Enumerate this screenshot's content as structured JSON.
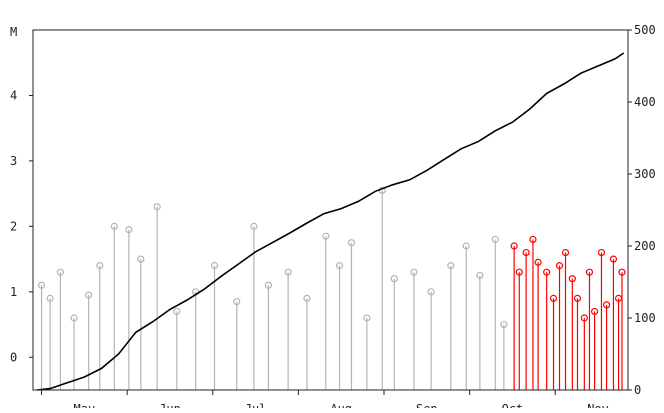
{
  "chart_data": {
    "type": "scatter",
    "left_axis": {
      "unit_label": "M",
      "ticks": [
        "0",
        "1",
        "2",
        "3",
        "4"
      ],
      "tick_values": [
        0,
        1,
        2,
        3,
        4
      ],
      "range": [
        -0.5,
        5
      ]
    },
    "right_axis": {
      "ticks": [
        "0",
        "100",
        "200",
        "300",
        "400",
        "500"
      ],
      "tick_values": [
        0,
        100,
        200,
        300,
        400,
        500
      ],
      "range": [
        0,
        500
      ]
    },
    "x_axis": {
      "labels": [
        "May",
        "Jun",
        "Jul",
        "Aug",
        "Sep",
        "Oct",
        "Nov"
      ],
      "label_positions": [
        1,
        2,
        3,
        4,
        5,
        6,
        7
      ],
      "range": [
        0.4,
        7.35
      ]
    },
    "colors": {
      "older_events": "#b4b4b4",
      "recent_events": "#ff0000",
      "cumulative_line": "#000000"
    },
    "series": [
      {
        "kind": "stem",
        "color": "#b4b4b4",
        "x": [
          0.5,
          0.6,
          0.72,
          0.88,
          1.05,
          1.18,
          1.35,
          1.52,
          1.66,
          1.85,
          2.08,
          2.3,
          2.52,
          2.78,
          2.98,
          3.15,
          3.38,
          3.6,
          3.82,
          3.98,
          4.12,
          4.3,
          4.48,
          4.62,
          4.85,
          5.05,
          5.28,
          5.46,
          5.62,
          5.8,
          5.9
        ],
        "y": [
          1.1,
          0.9,
          1.3,
          0.6,
          0.95,
          1.4,
          2.0,
          1.95,
          1.5,
          2.3,
          0.7,
          1.0,
          1.4,
          0.85,
          2.0,
          1.1,
          1.3,
          0.9,
          1.85,
          1.4,
          1.75,
          0.6,
          2.55,
          1.2,
          1.3,
          1.0,
          1.4,
          1.7,
          1.25,
          1.8,
          0.5
        ]
      },
      {
        "kind": "stem",
        "color": "#ff0000",
        "x": [
          6.02,
          6.08,
          6.16,
          6.24,
          6.3,
          6.4,
          6.48,
          6.55,
          6.62,
          6.7,
          6.76,
          6.84,
          6.9,
          6.96,
          7.04,
          7.1,
          7.18,
          7.24,
          7.28
        ],
        "y": [
          1.7,
          1.3,
          1.6,
          1.8,
          1.45,
          1.3,
          0.9,
          1.4,
          1.6,
          1.2,
          0.9,
          0.6,
          1.3,
          0.7,
          1.6,
          0.8,
          1.5,
          0.9,
          1.3
        ]
      },
      {
        "kind": "line",
        "axis": "right",
        "color": "#000000",
        "x": [
          0.45,
          0.6,
          0.8,
          1.0,
          1.2,
          1.4,
          1.6,
          1.8,
          2.0,
          2.2,
          2.4,
          2.6,
          2.8,
          3.0,
          3.2,
          3.4,
          3.6,
          3.8,
          4.0,
          4.2,
          4.4,
          4.6,
          4.8,
          5.0,
          5.2,
          5.4,
          5.6,
          5.8,
          6.0,
          6.2,
          6.4,
          6.6,
          6.8,
          7.0,
          7.2,
          7.3
        ],
        "y": [
          0,
          2,
          10,
          18,
          30,
          50,
          80,
          95,
          112,
          125,
          140,
          158,
          175,
          192,
          205,
          218,
          232,
          245,
          252,
          262,
          276,
          285,
          292,
          305,
          320,
          335,
          345,
          360,
          372,
          390,
          412,
          425,
          440,
          450,
          460,
          468
        ]
      }
    ]
  }
}
